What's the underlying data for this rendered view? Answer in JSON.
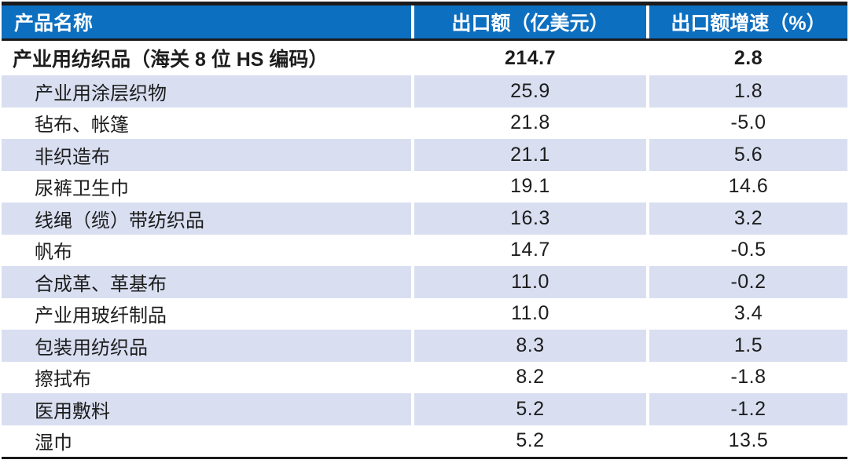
{
  "table": {
    "columns": [
      {
        "label": "产品名称"
      },
      {
        "label": "出口额（亿美元）"
      },
      {
        "label": "出口额增速（%）"
      }
    ],
    "total_row": {
      "name": "产业用纺织品（海关 8 位 HS 编码）",
      "export_value": "214.7",
      "growth": "2.8"
    },
    "rows": [
      {
        "name": "产业用涂层织物",
        "export_value": "25.9",
        "growth": "1.8"
      },
      {
        "name": "毡布、帐篷",
        "export_value": "21.8",
        "growth": "-5.0"
      },
      {
        "name": "非织造布",
        "export_value": "21.1",
        "growth": "5.6"
      },
      {
        "name": "尿裤卫生巾",
        "export_value": "19.1",
        "growth": "14.6"
      },
      {
        "name": "线绳（缆）带纺织品",
        "export_value": "16.3",
        "growth": "3.2"
      },
      {
        "name": "帆布",
        "export_value": "14.7",
        "growth": "-0.5"
      },
      {
        "name": "合成革、革基布",
        "export_value": "11.0",
        "growth": "-0.2"
      },
      {
        "name": "产业用玻纤制品",
        "export_value": "11.0",
        "growth": "3.4"
      },
      {
        "name": "包装用纺织品",
        "export_value": "8.3",
        "growth": "1.5"
      },
      {
        "name": "擦拭布",
        "export_value": "8.2",
        "growth": "-1.8"
      },
      {
        "name": "医用敷料",
        "export_value": "5.2",
        "growth": "-1.2"
      },
      {
        "name": "湿巾",
        "export_value": "5.2",
        "growth": "13.5"
      }
    ]
  },
  "colors": {
    "header_bg": "#0d6fc0",
    "alt_row_bg": "#d9dff1",
    "border_dark": "#1b1b1b"
  }
}
